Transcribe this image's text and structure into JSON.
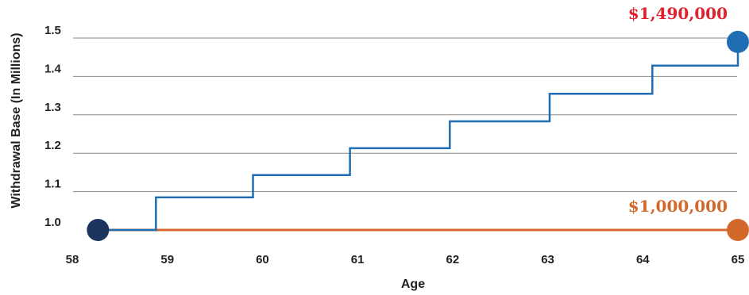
{
  "chart_data": {
    "type": "line",
    "xlabel": "Age",
    "ylabel": "Withdrawal Base (In Millions)",
    "xlim": [
      58,
      65
    ],
    "ylim": [
      1.0,
      1.5
    ],
    "x_ticks": [
      "58",
      "59",
      "60",
      "61",
      "62",
      "63",
      "64",
      "65"
    ],
    "y_ticks": [
      "1.0",
      "1.1",
      "1.2",
      "1.3",
      "1.4",
      "1.5"
    ],
    "grid": "horizontal",
    "series": [
      {
        "color": "#1f6db3",
        "step": true,
        "points": [
          [
            58.27,
            1.0
          ],
          [
            58.88,
            1.0
          ],
          [
            58.88,
            1.085
          ],
          [
            59.9,
            1.085
          ],
          [
            59.9,
            1.143
          ],
          [
            60.92,
            1.143
          ],
          [
            60.92,
            1.213
          ],
          [
            61.97,
            1.213
          ],
          [
            61.97,
            1.283
          ],
          [
            63.02,
            1.283
          ],
          [
            63.02,
            1.355
          ],
          [
            64.1,
            1.355
          ],
          [
            64.1,
            1.428
          ],
          [
            65.0,
            1.428
          ],
          [
            65.0,
            1.49
          ]
        ]
      },
      {
        "color": "#d2692a",
        "step": false,
        "points": [
          [
            58.27,
            1.0
          ],
          [
            65.0,
            1.0
          ]
        ]
      }
    ],
    "markers": [
      {
        "x": 58.27,
        "y": 1.0,
        "color": "#1c355e"
      },
      {
        "x": 65.0,
        "y": 1.49,
        "color": "#1f6db3"
      },
      {
        "x": 65.0,
        "y": 1.0,
        "color": "#d2692a"
      }
    ],
    "annotations": [
      {
        "text": "$1,490,000",
        "color": "#e0222e"
      },
      {
        "text": "$1,000,000",
        "color": "#d2692a"
      }
    ]
  }
}
